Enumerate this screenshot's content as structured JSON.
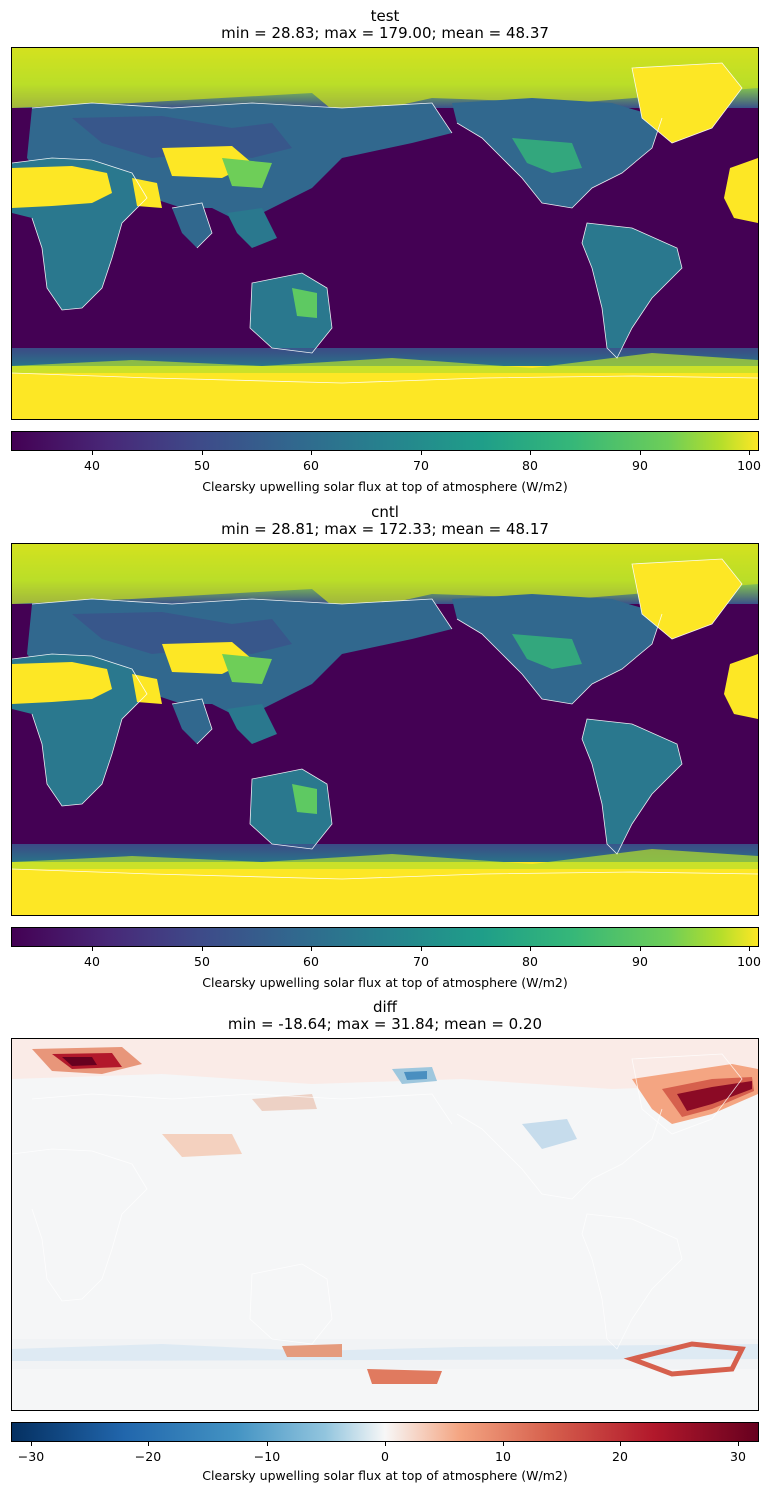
{
  "panels": [
    {
      "name": "test",
      "stats": "min = 28.83; max = 179.00; mean = 48.37",
      "colorbar": {
        "colormap": "viridis",
        "range": [
          32.5,
          100.8
        ],
        "ticks": [
          "40",
          "50",
          "60",
          "70",
          "80",
          "90",
          "100"
        ],
        "label": "Clearsky upwelling solar flux at top of atmosphere (W/m2)"
      }
    },
    {
      "name": "cntl",
      "stats": "min = 28.81; max = 172.33; mean = 48.17",
      "colorbar": {
        "colormap": "viridis",
        "range": [
          32.5,
          100.8
        ],
        "ticks": [
          "40",
          "50",
          "60",
          "70",
          "80",
          "90",
          "100"
        ],
        "label": "Clearsky upwelling solar flux at top of atmosphere (W/m2)"
      }
    },
    {
      "name": "diff",
      "stats": "min = -18.64; max = 31.84; mean = 0.20",
      "colorbar": {
        "colormap": "RdBu_r",
        "range": [
          -31.84,
          31.84
        ],
        "ticks": [
          "−30",
          "−20",
          "−10",
          "0",
          "10",
          "20",
          "30"
        ],
        "label": "Clearsky upwelling solar flux at top of atmosphere (W/m2)"
      }
    }
  ],
  "colors": {
    "viridis_low": "#440154",
    "viridis_mid": "#21918c",
    "viridis_high": "#fde725",
    "diff_low": "#053061",
    "diff_mid": "#f7f7f7",
    "diff_high": "#67001f",
    "coastline": "#ffffff"
  }
}
